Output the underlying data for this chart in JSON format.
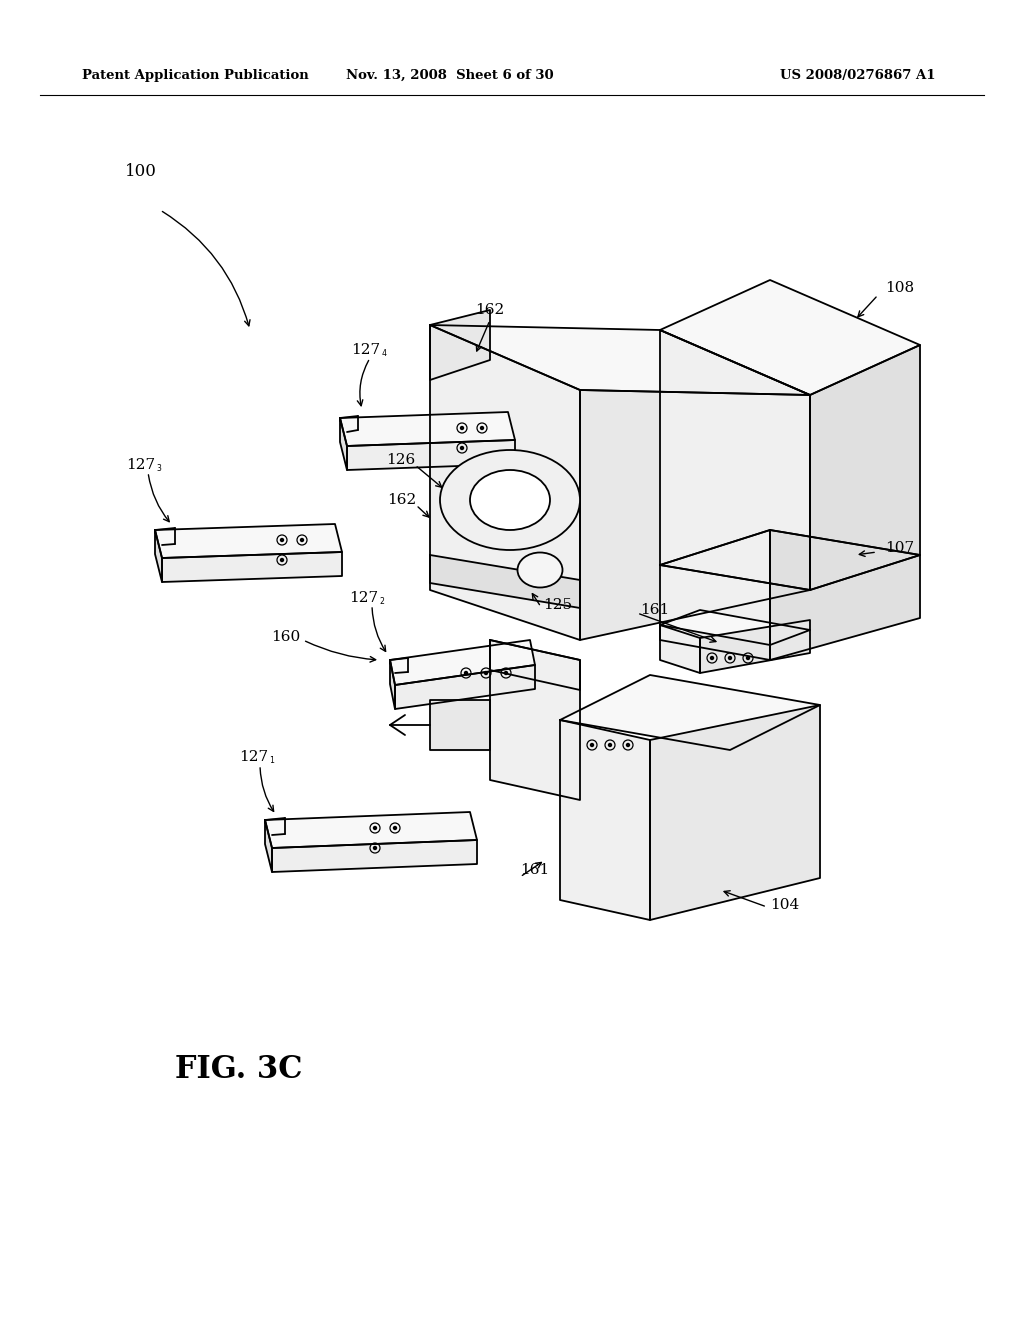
{
  "background_color": "#ffffff",
  "header_left": "Patent Application Publication",
  "header_center": "Nov. 13, 2008  Sheet 6 of 30",
  "header_right": "US 2008/0276867 A1",
  "figure_label": "FIG. 3C",
  "line_color": "#000000",
  "fill_white": "#ffffff",
  "fill_light": "#f8f8f8",
  "fill_mid": "#eeeeee",
  "fill_dark": "#e0e0e0"
}
